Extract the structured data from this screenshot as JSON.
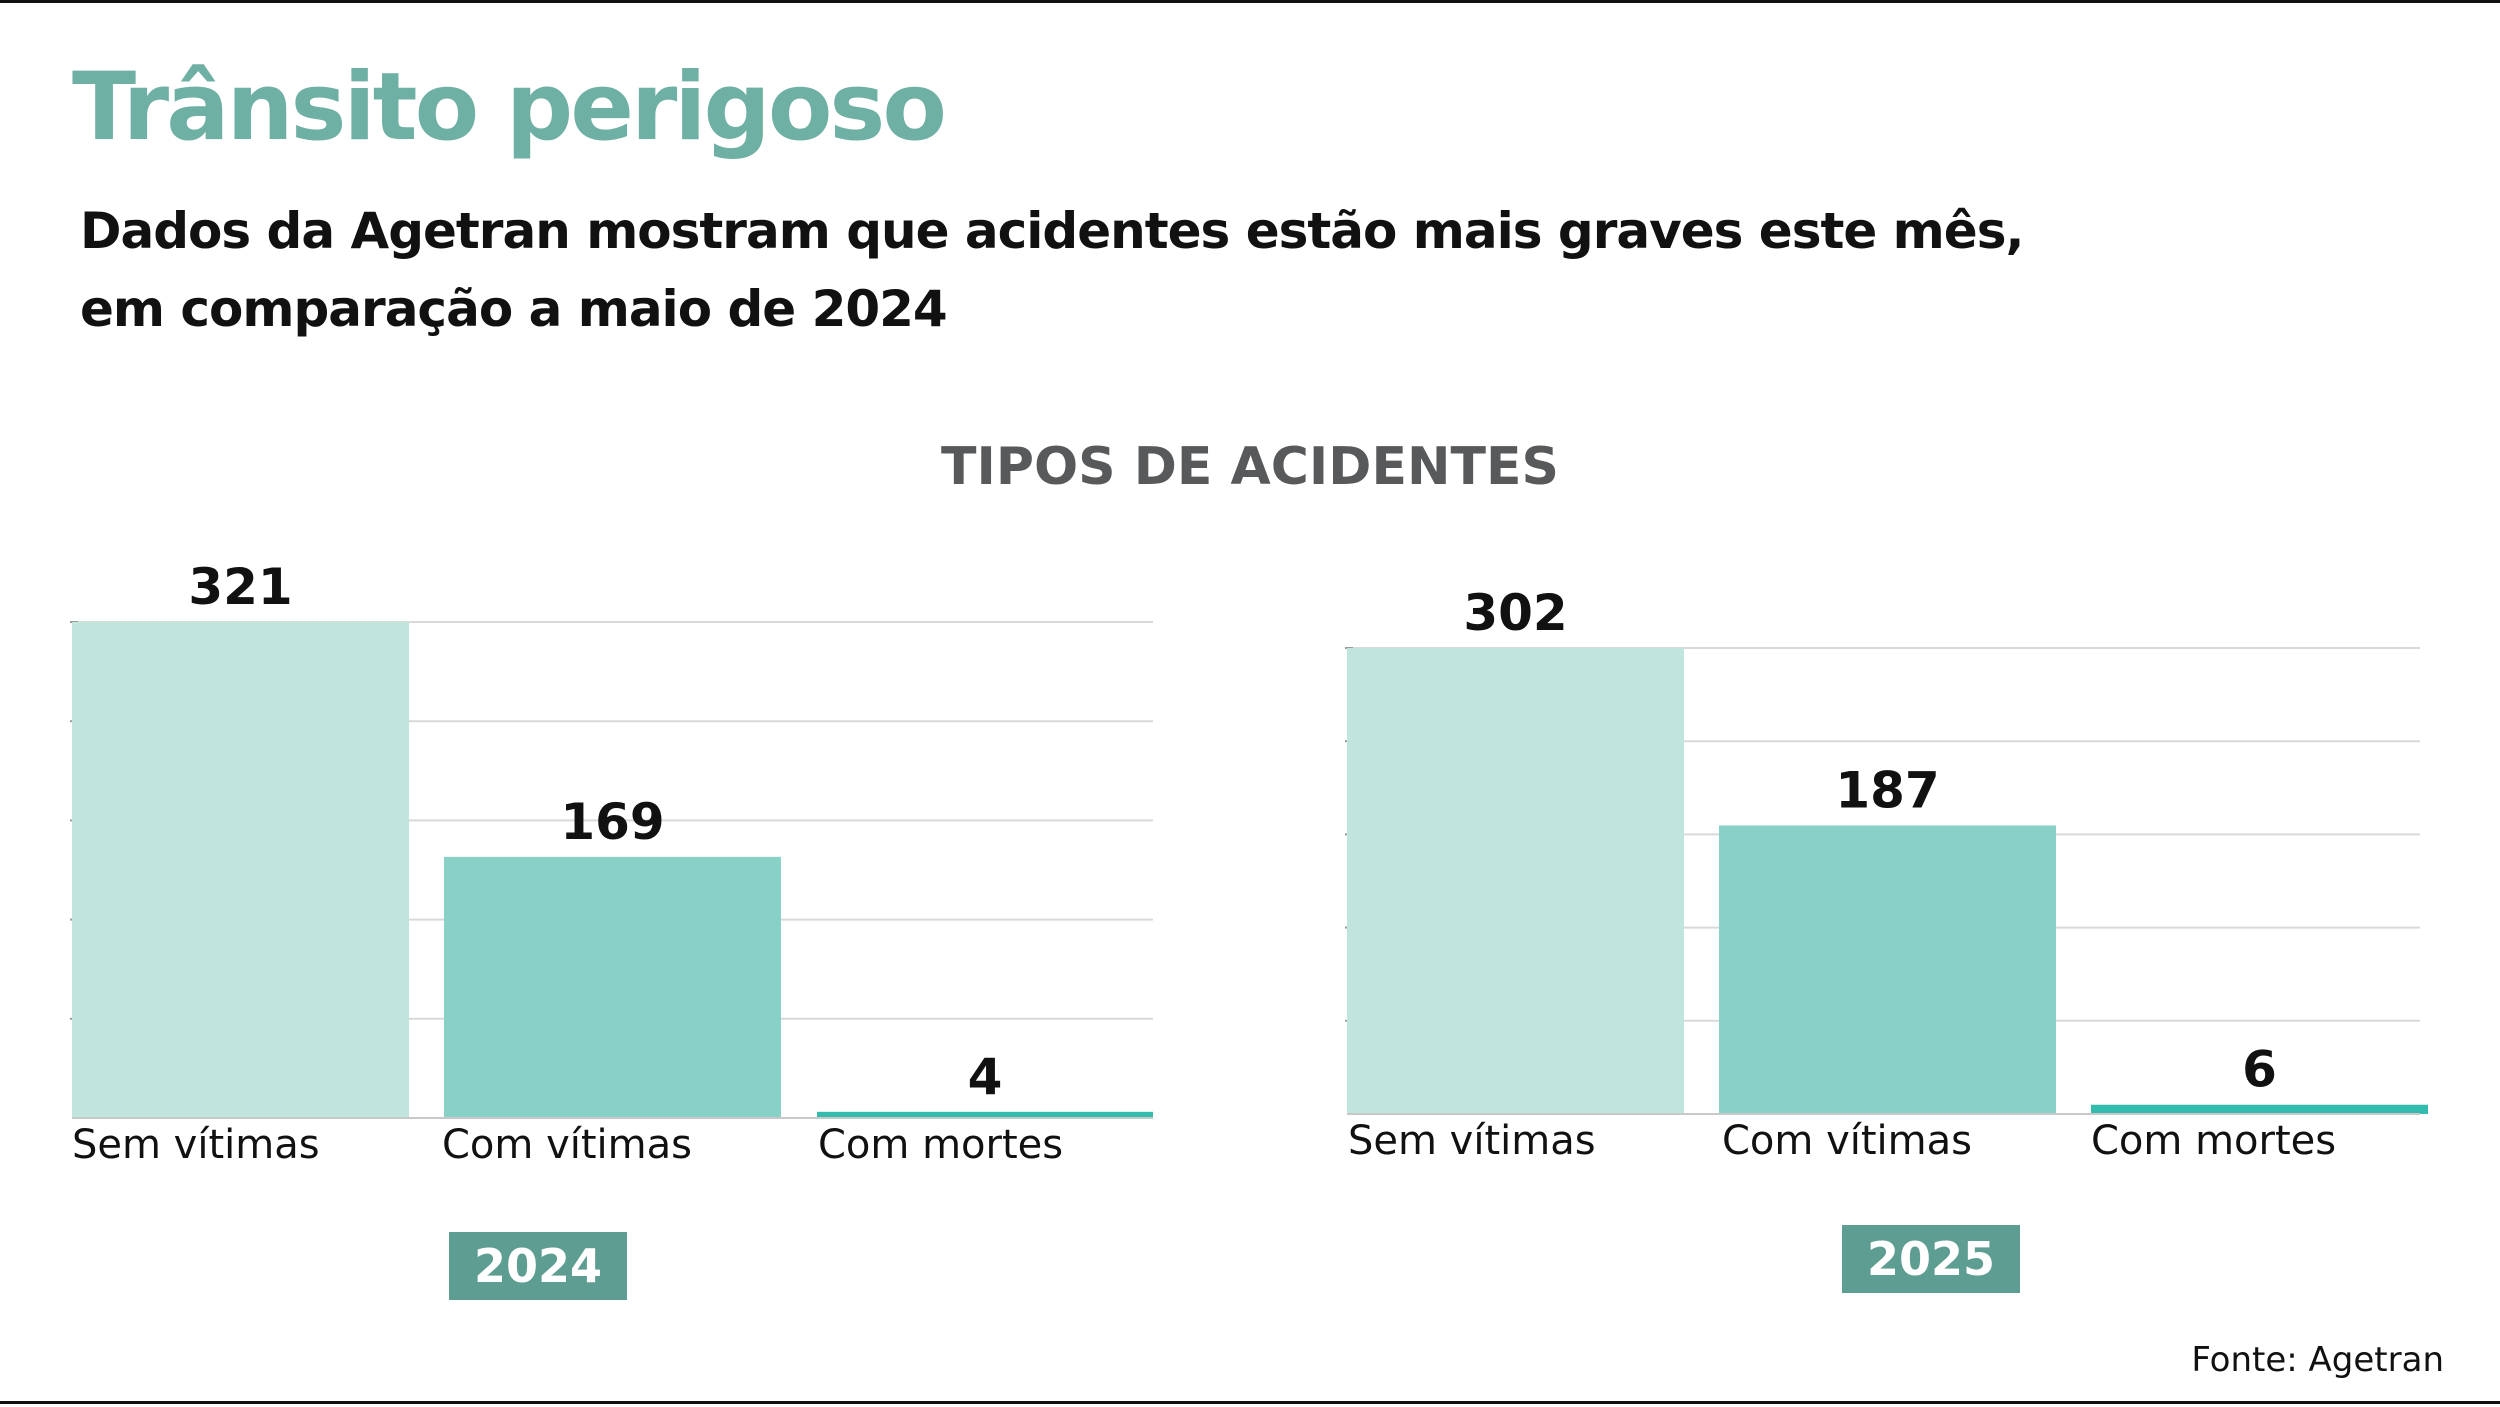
{
  "title": "Trânsito perigoso",
  "subtitle_line1": "Dados da Agetran mostram que acidentes estão mais graves este mês,",
  "subtitle_line2": "em comparação a maio de 2024",
  "section_title": "TIPOS DE ACIDENTES",
  "source": "Fonte: Agetran",
  "colors": {
    "title": "#6fb0a4",
    "text": "#111111",
    "section_title": "#58595b",
    "badge": "#5e9d91",
    "gridline": "#d9d9d9",
    "baseline": "#c8c8c8",
    "bar_sem_vitimas": "#c0e5dd",
    "bar_com_vitimas": "#89d0c6",
    "bar_com_mortes": "#33bcad"
  },
  "chart_data": [
    {
      "type": "bar",
      "badge": "2024",
      "categories": [
        "Sem vítimas",
        "Com vítimas",
        "Com mortes"
      ],
      "values": [
        321,
        169,
        4
      ],
      "value_labels": [
        "321",
        "169",
        "4"
      ],
      "ylim": [
        0,
        321
      ],
      "grid": true
    },
    {
      "type": "bar",
      "badge": "2025",
      "categories": [
        "Sem vítimas",
        "Com vítimas",
        "Com mortes"
      ],
      "values": [
        302,
        187,
        6
      ],
      "value_labels": [
        "302",
        "187",
        "6"
      ],
      "ylim": [
        0,
        302
      ],
      "grid": true
    }
  ]
}
